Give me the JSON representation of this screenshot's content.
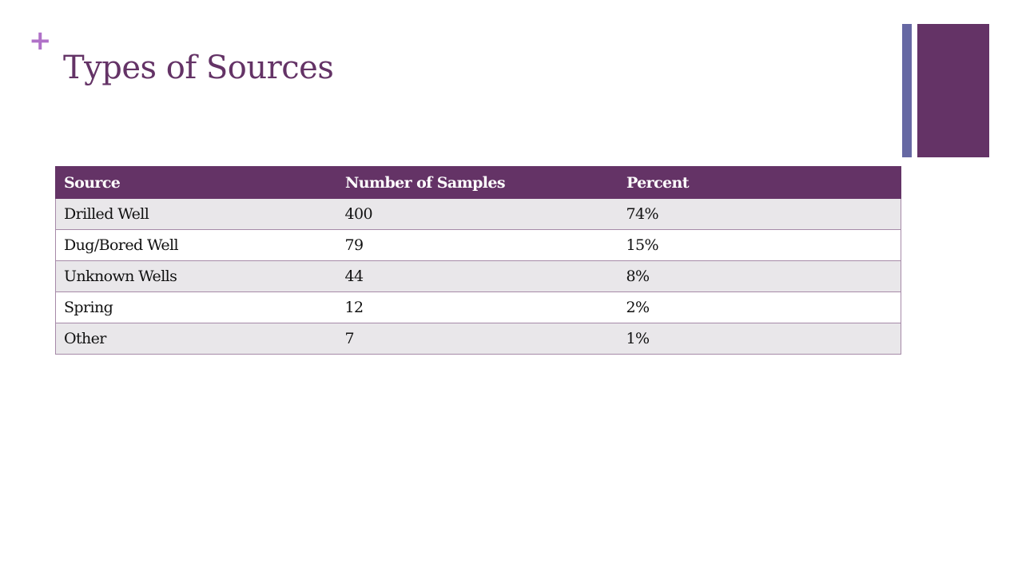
{
  "slide": {
    "marker": "+",
    "title": "Types of Sources"
  },
  "table": {
    "headers": [
      "Source",
      "Number of Samples",
      "Percent"
    ],
    "rows": [
      [
        "Drilled Well",
        "400",
        "74%"
      ],
      [
        "Dug/Bored Well",
        "79",
        "15%"
      ],
      [
        "Unknown Wells",
        "44",
        "8%"
      ],
      [
        "Spring",
        "12",
        "2%"
      ],
      [
        "Other",
        "7",
        "1%"
      ]
    ]
  },
  "colors": {
    "accent_purple": "#643366",
    "accent_blue": "#6668a3",
    "marker_pink": "#b071c8",
    "row_band": "#e9e7ea"
  }
}
